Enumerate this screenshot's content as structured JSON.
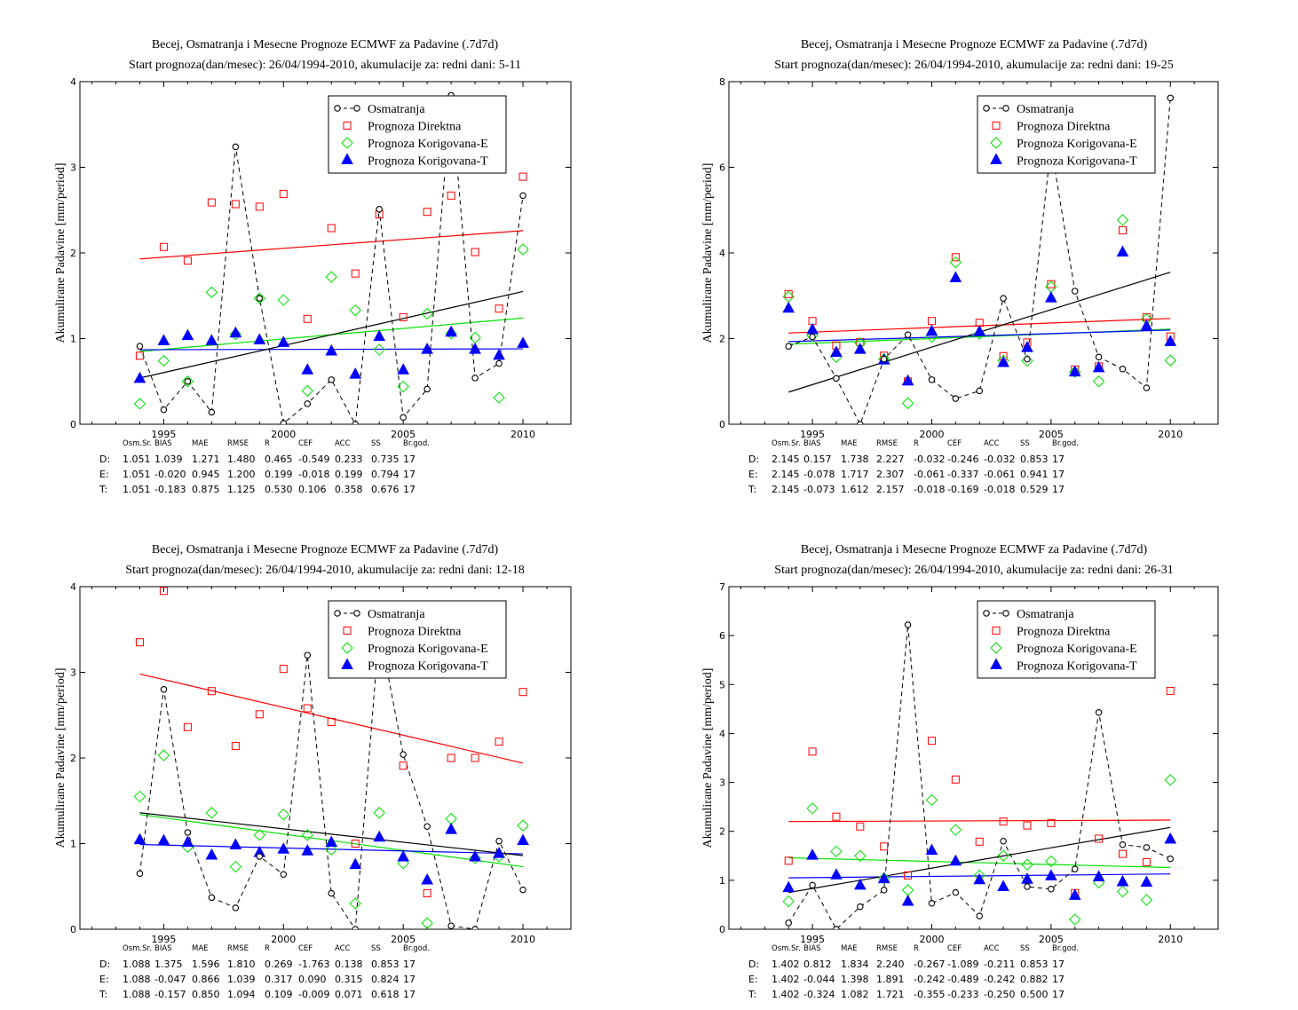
{
  "colors": {
    "observed": "#000000",
    "direct": "#ff0000",
    "corrected_e": "#00e000",
    "corrected_t": "#0000ff",
    "stats_D": "#ff0000",
    "stats_E": "#00b000",
    "stats_T": "#0000ff"
  },
  "legend": [
    "Osmatranja",
    "Prognoza Direktna",
    "Prognoza Korigovana-E",
    "Prognoza Korigovana-T"
  ],
  "ylabel": "Akumulirane Padavine [mm/period]",
  "stats_headers": [
    "Osm.Sr.",
    "BIAS",
    "MAE",
    "RMSE",
    "R",
    "CEF",
    "ACC",
    "SS",
    "Br.god."
  ],
  "chart_data": [
    {
      "type": "scatter",
      "title": "Becej, Osmatranja i Mesecne Prognoze ECMWF za Padavine (.7d7d)",
      "subtitle": "Start prognoza(dan/mesec): 26/04/1994-2010, akumulacije za: redni dani: 5-11",
      "ylabel": "Akumulirane Padavine [mm/period]",
      "xlim": [
        1991.5,
        2012
      ],
      "ylim": [
        0,
        4
      ],
      "xticks": [
        1995,
        2000,
        2005,
        2010
      ],
      "yticks": [
        0,
        1,
        2,
        3,
        4
      ],
      "x": [
        1994,
        1995,
        1996,
        1997,
        1998,
        1999,
        2000,
        2001,
        2002,
        2003,
        2004,
        2005,
        2006,
        2007,
        2008,
        2009,
        2010
      ],
      "series": [
        {
          "name": "Osmatranja",
          "values": [
            0.91,
            0.17,
            0.5,
            0.14,
            3.24,
            1.47,
            0.01,
            0.24,
            0.52,
            0.0,
            2.51,
            0.08,
            0.41,
            3.84,
            0.54,
            0.71,
            2.67
          ]
        },
        {
          "name": "Prognoza Direktna",
          "values": [
            0.8,
            2.07,
            1.91,
            2.59,
            2.57,
            2.54,
            2.69,
            1.23,
            2.29,
            1.76,
            2.45,
            1.25,
            2.48,
            2.67,
            2.01,
            1.35,
            2.89
          ]
        },
        {
          "name": "Prognoza Korigovana-E",
          "values": [
            0.24,
            0.74,
            0.5,
            1.54,
            1.05,
            1.47,
            1.45,
            0.39,
            1.72,
            1.33,
            0.87,
            0.44,
            1.29,
            1.06,
            1.01,
            0.31,
            2.04
          ]
        },
        {
          "name": "Prognoza Korigovana-T",
          "values": [
            0.54,
            0.98,
            1.04,
            0.98,
            1.07,
            0.99,
            0.96,
            0.64,
            0.86,
            0.59,
            1.03,
            0.64,
            0.88,
            1.08,
            0.88,
            0.81,
            0.95
          ]
        }
      ],
      "trends": {
        "observed": [
          0.54,
          1.55
        ],
        "direct": [
          1.93,
          2.26
        ],
        "corrected_e": [
          0.85,
          1.24
        ],
        "corrected_t": [
          0.87,
          0.88
        ]
      },
      "stats": [
        {
          "tag": "D:",
          "values": [
            "1.051",
            "1.039",
            "1.271",
            "1.480",
            "0.465",
            "-0.549",
            "0.233",
            "0.735",
            "17"
          ]
        },
        {
          "tag": "E:",
          "values": [
            "1.051",
            "-0.020",
            "0.945",
            "1.200",
            "0.199",
            "-0.018",
            "0.199",
            "0.794",
            "17"
          ]
        },
        {
          "tag": "T:",
          "values": [
            "1.051",
            "-0.183",
            "0.875",
            "1.125",
            "0.530",
            "0.106",
            "0.358",
            "0.676",
            "17"
          ]
        }
      ]
    },
    {
      "type": "scatter",
      "title": "Becej, Osmatranja i Mesecne Prognoze ECMWF za Padavine (.7d7d)",
      "subtitle": "Start prognoza(dan/mesec): 26/04/1994-2010, akumulacije za: redni dani: 19-25",
      "ylabel": "Akumulirane Padavine [mm/period]",
      "xlim": [
        1991.5,
        2012
      ],
      "ylim": [
        0,
        8
      ],
      "xticks": [
        1995,
        2000,
        2005,
        2010
      ],
      "yticks": [
        0,
        2,
        4,
        6,
        8
      ],
      "x": [
        1994,
        1995,
        1996,
        1997,
        1998,
        1999,
        2000,
        2001,
        2002,
        2003,
        2004,
        2005,
        2006,
        2007,
        2008,
        2009,
        2010
      ],
      "series": [
        {
          "name": "Osmatranja",
          "values": [
            1.82,
            2.04,
            1.07,
            0.0,
            1.52,
            2.09,
            1.04,
            0.6,
            0.78,
            2.94,
            1.52,
            6.5,
            3.11,
            1.57,
            1.29,
            0.85,
            7.62
          ]
        },
        {
          "name": "Prognoza Direktna",
          "values": [
            3.04,
            2.41,
            1.84,
            1.92,
            1.6,
            1.0,
            2.41,
            3.9,
            2.37,
            1.59,
            1.91,
            3.27,
            1.28,
            1.35,
            4.53,
            2.5,
            2.05
          ]
        },
        {
          "name": "Prognoza Korigovana-E",
          "values": [
            2.98,
            2.07,
            1.57,
            1.89,
            1.52,
            0.49,
            2.04,
            3.78,
            2.11,
            1.49,
            1.48,
            3.21,
            1.22,
            1.0,
            4.77,
            2.45,
            1.49
          ]
        },
        {
          "name": "Prognoza Korigovana-T",
          "values": [
            2.72,
            2.22,
            1.69,
            1.76,
            1.51,
            1.02,
            2.18,
            3.43,
            2.17,
            1.45,
            1.8,
            2.96,
            1.23,
            1.33,
            4.03,
            2.3,
            1.94
          ]
        }
      ],
      "trends": {
        "observed": [
          0.75,
          3.55
        ],
        "direct": [
          2.13,
          2.47
        ],
        "corrected_e": [
          1.87,
          2.22
        ],
        "corrected_t": [
          1.93,
          2.2
        ]
      },
      "stats": [
        {
          "tag": "D:",
          "values": [
            "2.145",
            "0.157",
            "1.738",
            "2.227",
            "-0.032",
            "-0.246",
            "-0.032",
            "0.853",
            "17"
          ]
        },
        {
          "tag": "E:",
          "values": [
            "2.145",
            "-0.078",
            "1.717",
            "2.307",
            "-0.061",
            "-0.337",
            "-0.061",
            "0.941",
            "17"
          ]
        },
        {
          "tag": "T:",
          "values": [
            "2.145",
            "-0.073",
            "1.612",
            "2.157",
            "-0.018",
            "-0.169",
            "-0.018",
            "0.529",
            "17"
          ]
        }
      ]
    },
    {
      "type": "scatter",
      "title": "Becej, Osmatranja i Mesecne Prognoze ECMWF za Padavine (.7d7d)",
      "subtitle": "Start prognoza(dan/mesec): 26/04/1994-2010, akumulacije za: redni dani: 12-18",
      "ylabel": "Akumulirane Padavine [mm/period]",
      "xlim": [
        1991.5,
        2012
      ],
      "ylim": [
        0,
        4
      ],
      "xticks": [
        1995,
        2000,
        2005,
        2010
      ],
      "yticks": [
        0,
        1,
        2,
        3,
        4
      ],
      "x": [
        1994,
        1995,
        1996,
        1997,
        1998,
        1999,
        2000,
        2001,
        2002,
        2003,
        2004,
        2005,
        2006,
        2007,
        2008,
        2009,
        2010
      ],
      "series": [
        {
          "name": "Osmatranja",
          "values": [
            0.65,
            2.8,
            1.13,
            0.37,
            0.25,
            0.85,
            0.64,
            3.2,
            0.42,
            0.0,
            3.5,
            2.04,
            1.2,
            0.04,
            0.0,
            1.03,
            0.46
          ]
        },
        {
          "name": "Prognoza Direktna",
          "values": [
            3.35,
            3.95,
            2.36,
            2.78,
            2.14,
            2.51,
            3.04,
            2.58,
            2.42,
            1.0,
            3.3,
            1.91,
            0.42,
            2.0,
            2.0,
            2.19,
            2.77
          ]
        },
        {
          "name": "Prognoza Korigovana-E",
          "values": [
            1.55,
            2.03,
            0.96,
            1.36,
            0.73,
            1.1,
            1.34,
            1.1,
            0.93,
            0.3,
            1.36,
            0.77,
            0.07,
            1.29,
            0.83,
            0.85,
            1.21
          ]
        },
        {
          "name": "Prognoza Korigovana-T",
          "values": [
            1.05,
            1.04,
            1.02,
            0.87,
            0.99,
            0.9,
            0.94,
            0.92,
            1.02,
            0.76,
            1.08,
            0.85,
            0.58,
            1.17,
            0.85,
            0.89,
            1.04
          ]
        }
      ],
      "trends": {
        "observed": [
          1.36,
          0.86
        ],
        "direct": [
          2.98,
          1.94
        ],
        "corrected_e": [
          1.34,
          0.73
        ],
        "corrected_t": [
          0.99,
          0.88
        ]
      },
      "stats": [
        {
          "tag": "D:",
          "values": [
            "1.088",
            "1.375",
            "1.596",
            "1.810",
            "0.269",
            "-1.763",
            "0.138",
            "0.853",
            "17"
          ]
        },
        {
          "tag": "E:",
          "values": [
            "1.088",
            "-0.047",
            "0.866",
            "1.039",
            "0.317",
            "0.090",
            "0.315",
            "0.824",
            "17"
          ]
        },
        {
          "tag": "T:",
          "values": [
            "1.088",
            "-0.157",
            "0.850",
            "1.094",
            "0.109",
            "-0.009",
            "0.071",
            "0.618",
            "17"
          ]
        }
      ]
    },
    {
      "type": "scatter",
      "title": "Becej, Osmatranja i Mesecne Prognoze ECMWF za Padavine (.7d7d)",
      "subtitle": "Start prognoza(dan/mesec): 26/04/1994-2010, akumulacije za: redni dani: 26-31",
      "ylabel": "Akumulirane Padavine [mm/period]",
      "xlim": [
        1991.5,
        2012
      ],
      "ylim": [
        0,
        7
      ],
      "xticks": [
        1995,
        2000,
        2005,
        2010
      ],
      "yticks": [
        0,
        1,
        2,
        3,
        4,
        5,
        6,
        7
      ],
      "x": [
        1994,
        1995,
        1996,
        1997,
        1998,
        1999,
        2000,
        2001,
        2002,
        2003,
        2004,
        2005,
        2006,
        2007,
        2008,
        2009,
        2010
      ],
      "series": [
        {
          "name": "Osmatranja",
          "values": [
            0.13,
            0.9,
            0.0,
            0.46,
            0.8,
            6.22,
            0.53,
            0.75,
            0.27,
            1.8,
            0.87,
            0.82,
            1.23,
            4.43,
            1.73,
            1.67,
            1.44
          ]
        },
        {
          "name": "Prognoza Direktna",
          "values": [
            1.4,
            3.63,
            2.3,
            2.1,
            1.69,
            1.1,
            3.85,
            3.06,
            1.79,
            2.2,
            2.12,
            2.17,
            0.74,
            1.85,
            1.54,
            1.37,
            4.87
          ]
        },
        {
          "name": "Prognoza Korigovana-E",
          "values": [
            0.57,
            2.47,
            1.59,
            1.5,
            1.04,
            0.8,
            2.64,
            2.03,
            1.1,
            1.5,
            1.32,
            1.39,
            0.2,
            0.95,
            0.77,
            0.6,
            3.05
          ]
        },
        {
          "name": "Prognoza Korigovana-T",
          "values": [
            0.86,
            1.52,
            1.12,
            0.91,
            1.04,
            0.58,
            1.62,
            1.4,
            1.02,
            0.88,
            1.03,
            1.1,
            0.7,
            1.08,
            0.98,
            0.97,
            1.85
          ]
        }
      ],
      "trends": {
        "observed": [
          0.75,
          2.08
        ],
        "direct": [
          2.2,
          2.23
        ],
        "corrected_e": [
          1.46,
          1.26
        ],
        "corrected_t": [
          1.05,
          1.13
        ]
      },
      "stats": [
        {
          "tag": "D:",
          "values": [
            "1.402",
            "0.812",
            "1.834",
            "2.240",
            "-0.267",
            "-1.089",
            "-0.211",
            "0.853",
            "17"
          ]
        },
        {
          "tag": "E:",
          "values": [
            "1.402",
            "-0.044",
            "1.398",
            "1.891",
            "-0.242",
            "-0.489",
            "-0.242",
            "0.882",
            "17"
          ]
        },
        {
          "tag": "T:",
          "values": [
            "1.402",
            "-0.324",
            "1.082",
            "1.721",
            "-0.355",
            "-0.233",
            "-0.250",
            "0.500",
            "17"
          ]
        }
      ]
    }
  ]
}
